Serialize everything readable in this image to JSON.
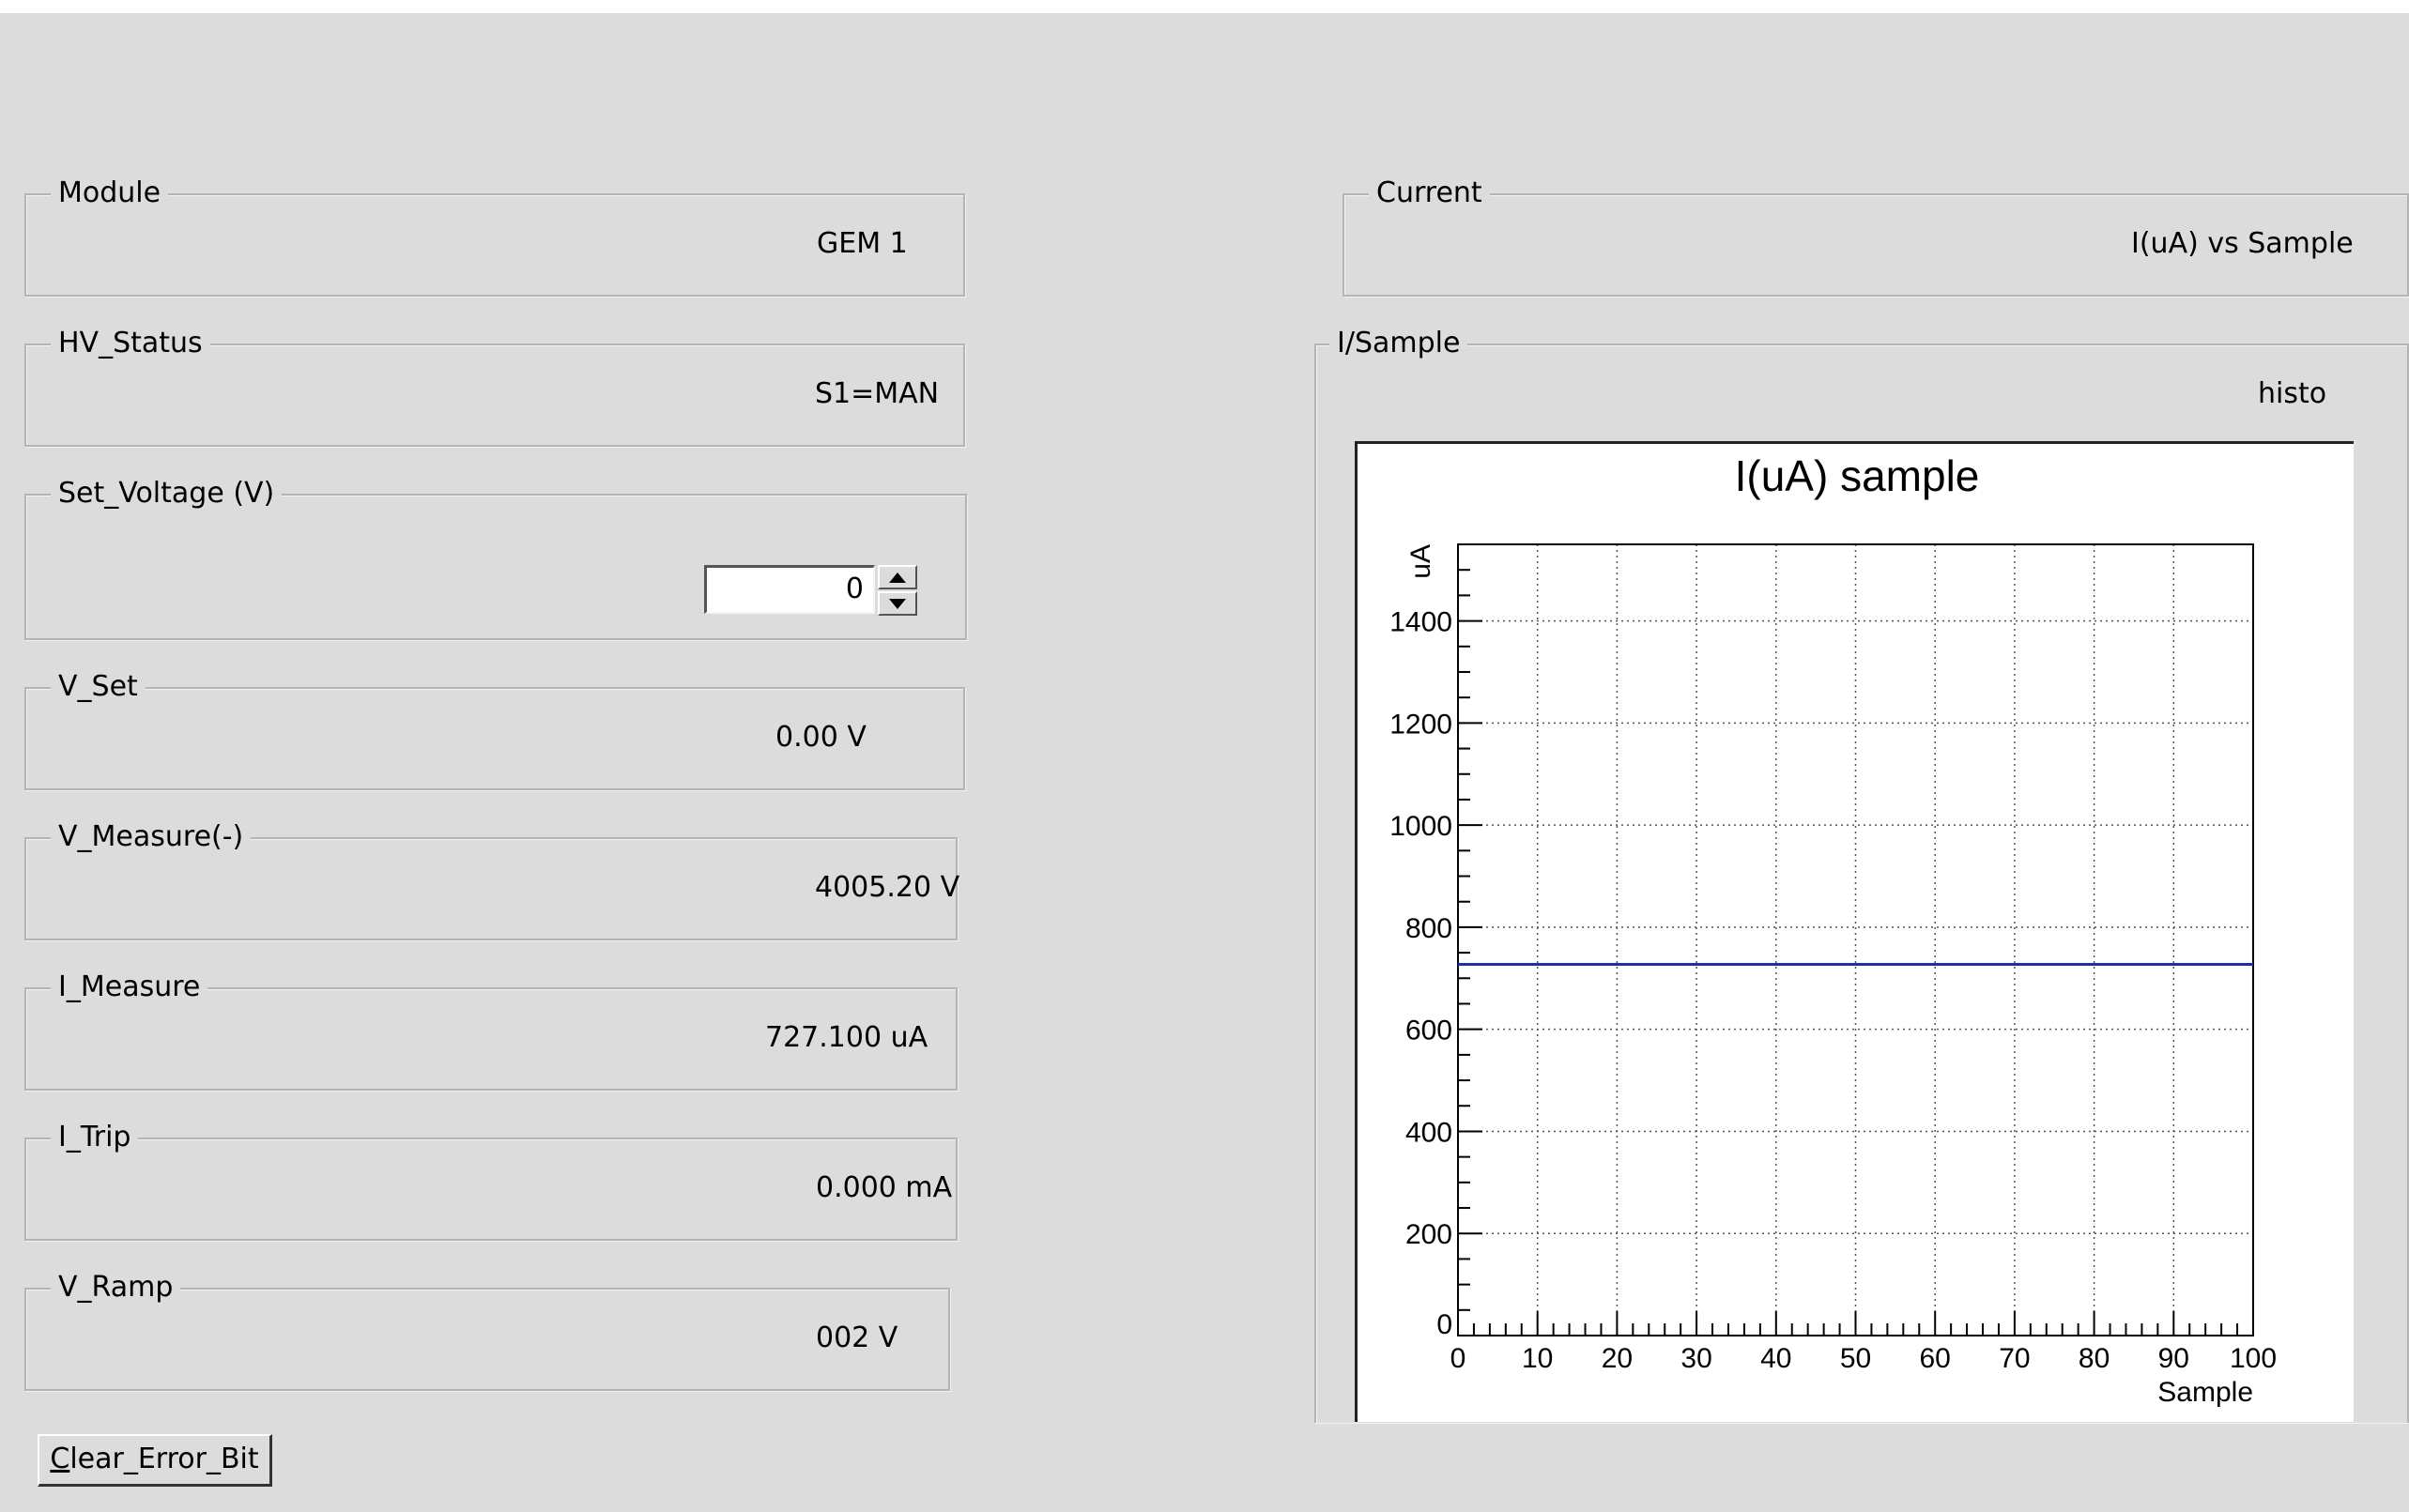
{
  "module": {
    "label": "Module",
    "value": "GEM 1"
  },
  "hv_status": {
    "label": "HV_Status",
    "value": "S1=MAN"
  },
  "set_voltage": {
    "label": "Set_Voltage (V)",
    "value": "0"
  },
  "v_set": {
    "label": "V_Set",
    "value": "0.00 V"
  },
  "v_measure": {
    "label": "V_Measure(-)",
    "value": "4005.20 V"
  },
  "i_measure": {
    "label": "I_Measure",
    "value": "727.100 uA"
  },
  "i_trip": {
    "label": "I_Trip",
    "value": "0.000 mA"
  },
  "v_ramp": {
    "label": "V_Ramp",
    "value": "002 V"
  },
  "clear_button": {
    "first": "C",
    "rest": "lear_Error_Bit"
  },
  "current": {
    "label": "Current",
    "value": "I(uA) vs Sample"
  },
  "isample": {
    "label": "I/Sample",
    "name": "histo"
  },
  "chart_data": {
    "type": "line",
    "title": "I(uA) sample",
    "xlabel": "Sample",
    "ylabel": "uA",
    "xlim": [
      0,
      100
    ],
    "ylim": [
      0,
      1550
    ],
    "x_ticks": [
      0,
      10,
      20,
      30,
      40,
      50,
      60,
      70,
      80,
      90,
      100
    ],
    "y_ticks": [
      0,
      200,
      400,
      600,
      800,
      1000,
      1200,
      1400
    ],
    "grid": true,
    "line_color": "#1f2fa8",
    "series": [
      {
        "x": [
          0,
          100
        ],
        "y": [
          727.1,
          727.1
        ]
      }
    ]
  }
}
